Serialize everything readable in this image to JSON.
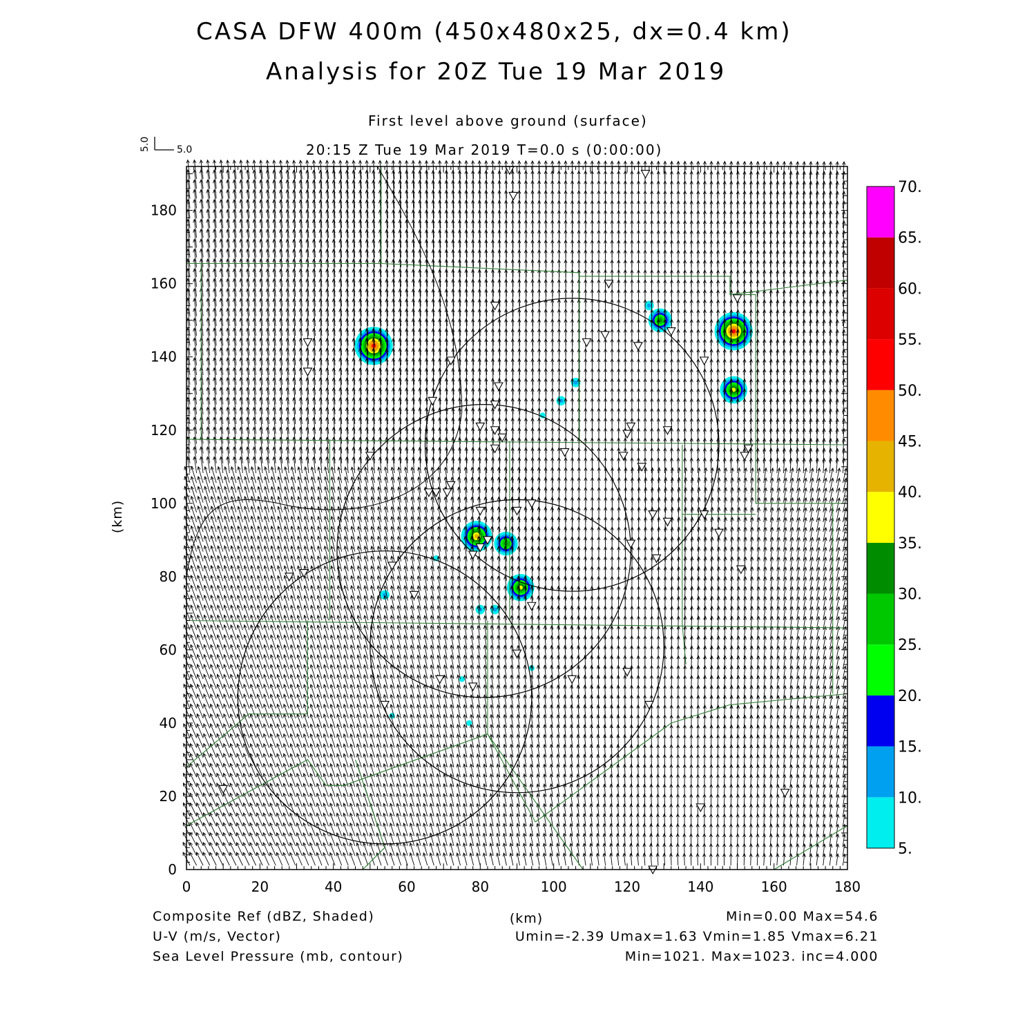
{
  "header": {
    "title_line1": "CASA DFW 400m (450x480x25, dx=0.4 km)",
    "title_line2": "Analysis for 20Z Tue 19 Mar 2019",
    "level": "First level above ground (surface)",
    "time": "20:15 Z Tue 19 Mar 2019    T=0.0 s (0:00:00)",
    "ref_vector_x": "5.0",
    "ref_vector_y": "5.0"
  },
  "footer": {
    "field1": "Composite Ref (dBZ, Shaded)",
    "field2": "U-V (m/s, Vector)",
    "field3": "Sea Level Pressure (mb, contour)",
    "stats1": "Min=0.00 Max=54.6",
    "stats2": "Umin=-2.39 Umax=1.63 Vmin=1.85 Vmax=6.21",
    "stats3": "Min=1021. Max=1023. inc=4.000"
  },
  "chart_data": {
    "type": "heatmap",
    "xlabel": "(km)",
    "ylabel": "(km)",
    "xlim": [
      0,
      180
    ],
    "ylim": [
      0,
      192
    ],
    "xticks": [
      0,
      20,
      40,
      60,
      80,
      100,
      120,
      140,
      160,
      180
    ],
    "yticks": [
      0,
      20,
      40,
      60,
      80,
      100,
      120,
      140,
      160,
      180
    ],
    "colorbar": {
      "levels": [
        "5.",
        "10.",
        "15.",
        "20.",
        "25.",
        "30.",
        "35.",
        "40.",
        "45.",
        "50.",
        "55.",
        "60.",
        "65.",
        "70."
      ],
      "colors": [
        "#00eeee",
        "#00a0f0",
        "#0000f0",
        "#00ff00",
        "#00c800",
        "#008c00",
        "#ffff00",
        "#e6b400",
        "#ff8c00",
        "#ff0000",
        "#dc0000",
        "#c00000",
        "#ff00ff"
      ]
    },
    "reflectivity_cells": [
      {
        "x": 51,
        "y": 143,
        "dbz": 54
      },
      {
        "x": 126,
        "y": 154,
        "dbz": 14
      },
      {
        "x": 129,
        "y": 150,
        "dbz": 32
      },
      {
        "x": 149,
        "y": 147,
        "dbz": 54
      },
      {
        "x": 149,
        "y": 131,
        "dbz": 36
      },
      {
        "x": 106,
        "y": 133,
        "dbz": 14
      },
      {
        "x": 102,
        "y": 128,
        "dbz": 14
      },
      {
        "x": 97,
        "y": 124,
        "dbz": 7
      },
      {
        "x": 79,
        "y": 91,
        "dbz": 40
      },
      {
        "x": 87,
        "y": 89,
        "dbz": 32
      },
      {
        "x": 91,
        "y": 77,
        "dbz": 38
      },
      {
        "x": 54,
        "y": 75,
        "dbz": 11
      },
      {
        "x": 80,
        "y": 71,
        "dbz": 14
      },
      {
        "x": 84,
        "y": 71,
        "dbz": 14
      },
      {
        "x": 68,
        "y": 85,
        "dbz": 7
      },
      {
        "x": 94,
        "y": 55,
        "dbz": 9
      },
      {
        "x": 56,
        "y": 42,
        "dbz": 9
      },
      {
        "x": 77,
        "y": 40,
        "dbz": 7
      },
      {
        "x": 75,
        "y": 52,
        "dbz": 6
      }
    ],
    "radar_range_rings": [
      {
        "cx": 105,
        "cy": 116,
        "r": 40
      },
      {
        "cx": 81,
        "cy": 87,
        "r": 40
      },
      {
        "cx": 90,
        "cy": 61,
        "r": 40
      },
      {
        "cx": 54,
        "cy": 47,
        "r": 40
      }
    ],
    "station_markers": [
      [
        88,
        191
      ],
      [
        89,
        184
      ],
      [
        125,
        190
      ],
      [
        84,
        154
      ],
      [
        115,
        160
      ],
      [
        132,
        147
      ],
      [
        114,
        146
      ],
      [
        109,
        144
      ],
      [
        123,
        143
      ],
      [
        141,
        139
      ],
      [
        150,
        156
      ],
      [
        33,
        144
      ],
      [
        33,
        136
      ],
      [
        72,
        139
      ],
      [
        85,
        132
      ],
      [
        84,
        127
      ],
      [
        67,
        128
      ],
      [
        80,
        121
      ],
      [
        84,
        120
      ],
      [
        86,
        118
      ],
      [
        84,
        115
      ],
      [
        121,
        121
      ],
      [
        120,
        119
      ],
      [
        131,
        120
      ],
      [
        103,
        114
      ],
      [
        119,
        113
      ],
      [
        124,
        110
      ],
      [
        153,
        115
      ],
      [
        152,
        113
      ],
      [
        50,
        113
      ],
      [
        72,
        105
      ],
      [
        71,
        103
      ],
      [
        68,
        103
      ],
      [
        66,
        103
      ],
      [
        80,
        98
      ],
      [
        90,
        98
      ],
      [
        94,
        100
      ],
      [
        127,
        97
      ],
      [
        131,
        95
      ],
      [
        141,
        97
      ],
      [
        145,
        92
      ],
      [
        151,
        82
      ],
      [
        80,
        88
      ],
      [
        78,
        86
      ],
      [
        82,
        90
      ],
      [
        56,
        83
      ],
      [
        62,
        75
      ],
      [
        28,
        80
      ],
      [
        32,
        81
      ],
      [
        121,
        89
      ],
      [
        128,
        85
      ],
      [
        94,
        72
      ],
      [
        90,
        59
      ],
      [
        105,
        52
      ],
      [
        120,
        54
      ],
      [
        69,
        52
      ],
      [
        78,
        50
      ],
      [
        54,
        45
      ],
      [
        126,
        45
      ],
      [
        10,
        22
      ],
      [
        140,
        17
      ],
      [
        163,
        21
      ],
      [
        127,
        0
      ]
    ],
    "wind_vector_range": {
      "umin": -2.39,
      "umax": 1.63,
      "vmin": 1.85,
      "vmax": 6.21
    }
  }
}
